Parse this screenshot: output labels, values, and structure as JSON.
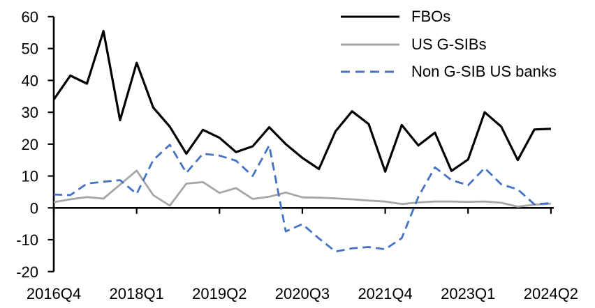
{
  "chart_data": {
    "type": "line",
    "title": "",
    "xlabel": "",
    "ylabel": "",
    "ylim": [
      -20,
      60
    ],
    "grid": "off",
    "legend_position": "top-right",
    "background": "#ffffff",
    "axis_color": "#000000",
    "x_categories": [
      "2016Q4",
      "2017Q1",
      "2017Q2",
      "2017Q3",
      "2017Q4",
      "2018Q1",
      "2018Q2",
      "2018Q3",
      "2018Q4",
      "2019Q1",
      "2019Q2",
      "2019Q3",
      "2019Q4",
      "2020Q1",
      "2020Q2",
      "2020Q3",
      "2020Q4",
      "2021Q1",
      "2021Q2",
      "2021Q3",
      "2021Q4",
      "2022Q1",
      "2022Q2",
      "2022Q3",
      "2022Q4",
      "2023Q1",
      "2023Q2",
      "2023Q3",
      "2023Q4",
      "2024Q1",
      "2024Q2"
    ],
    "x_tick_indices": [
      0,
      5,
      10,
      15,
      20,
      25,
      30
    ],
    "x_tick_labels": [
      "2016Q4",
      "2018Q1",
      "2019Q2",
      "2020Q3",
      "2021Q4",
      "2023Q1",
      "2024Q2"
    ],
    "y_ticks": [
      60,
      50,
      40,
      30,
      20,
      10,
      0,
      -10,
      -20
    ],
    "series": [
      {
        "name": "FBOs",
        "color": "#000000",
        "style": "solid",
        "values": [
          34,
          41.5,
          39,
          55.5,
          27.5,
          45.5,
          31.5,
          25.5,
          17,
          24.5,
          22,
          17.5,
          19.3,
          25.3,
          20,
          15.7,
          12.2,
          24,
          30.3,
          26.3,
          11.4,
          26,
          19.6,
          23.6,
          11.6,
          15.2,
          30,
          25.5,
          15,
          24.6,
          24.8
        ]
      },
      {
        "name": "US G-SIBs",
        "color": "#a6a6a6",
        "style": "solid",
        "values": [
          1.8,
          2.7,
          3.4,
          2.9,
          7.3,
          11.7,
          4,
          0.7,
          7.6,
          8.1,
          4.7,
          6.2,
          2.8,
          3.5,
          4.8,
          3.3,
          3.2,
          3,
          2.7,
          2.3,
          2,
          1.2,
          1.7,
          2,
          2,
          1.9,
          2,
          1.6,
          0.4,
          1,
          1.3
        ]
      },
      {
        "name": "Non G-SIB US banks",
        "color": "#4472c4",
        "style": "dashed",
        "values": [
          4.2,
          4,
          7.6,
          8.2,
          8.7,
          4.4,
          15,
          19.8,
          11,
          17,
          16.4,
          14.8,
          10,
          19.6,
          -7.4,
          -5.1,
          -9.6,
          -13.7,
          -12.7,
          -12.3,
          -13,
          -9.5,
          3.5,
          12.7,
          8.7,
          7.1,
          12.5,
          7.4,
          5.8,
          1.1,
          1.5
        ]
      }
    ]
  }
}
